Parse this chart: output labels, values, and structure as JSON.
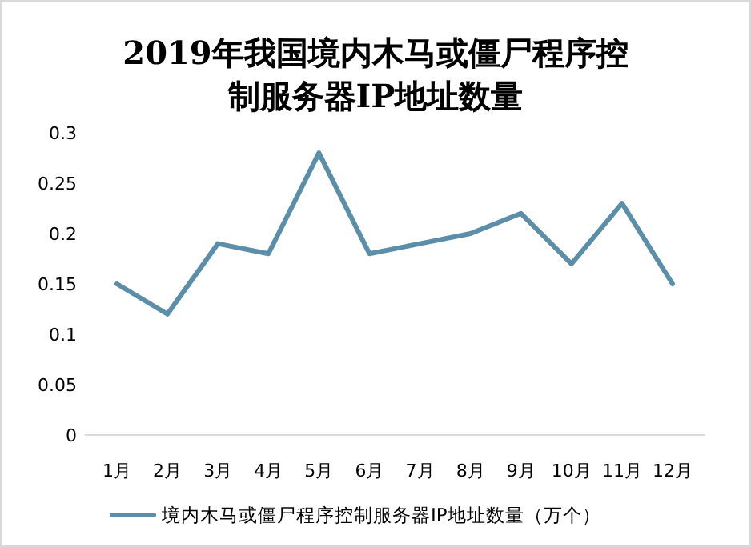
{
  "chart_data": {
    "type": "line",
    "title": "2019年我国境内木马或僵尸程序控制服务器IP地址数量",
    "categories": [
      "1月",
      "2月",
      "3月",
      "4月",
      "5月",
      "6月",
      "7月",
      "8月",
      "9月",
      "10月",
      "11月",
      "12月"
    ],
    "series": [
      {
        "name": "境内木马或僵尸程序控制服务器IP地址数量（万个）",
        "color": "#5b8ea8",
        "values": [
          0.15,
          0.12,
          0.19,
          0.18,
          0.28,
          0.18,
          0.19,
          0.2,
          0.22,
          0.17,
          0.23,
          0.15
        ]
      }
    ],
    "ylim": [
      0,
      0.3
    ],
    "yticks": [
      0,
      0.05,
      0.1,
      0.15,
      0.2,
      0.25,
      0.3
    ],
    "legend": "bottom",
    "marker": "none",
    "line_style": "solid"
  }
}
